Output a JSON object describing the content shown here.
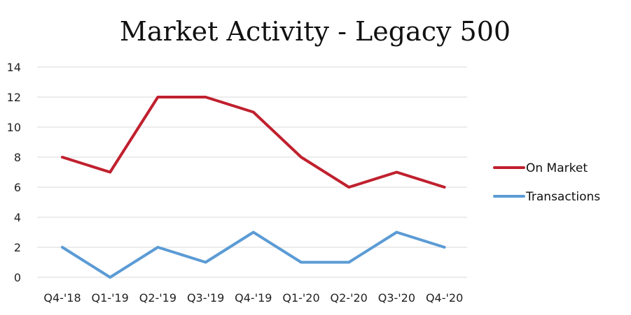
{
  "chart_data": {
    "type": "line",
    "title": "Market Activity - Legacy 500",
    "xlabel": "",
    "ylabel": "",
    "ylim": [
      0,
      14
    ],
    "yticks": [
      0,
      2,
      4,
      6,
      8,
      10,
      12,
      14
    ],
    "categories": [
      "Q4-'18",
      "Q1-'19",
      "Q2-'19",
      "Q3-'19",
      "Q4-'19",
      "Q1-'20",
      "Q2-'20",
      "Q3-'20",
      "Q4-'20"
    ],
    "series": [
      {
        "name": "On Market",
        "color": "#c0202e",
        "values": [
          8,
          7,
          12,
          12,
          11,
          8,
          6,
          7,
          6
        ]
      },
      {
        "name": "Transactions",
        "color": "#5b9bd5",
        "values": [
          2,
          0,
          2,
          1,
          3,
          1,
          1,
          3,
          2
        ]
      }
    ],
    "grid": true,
    "legend_position": "right"
  }
}
